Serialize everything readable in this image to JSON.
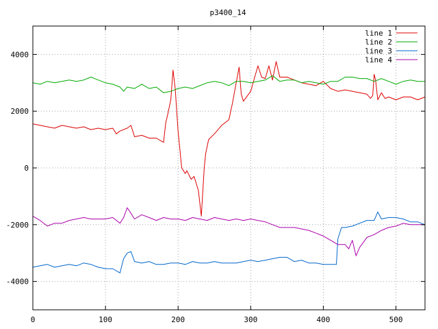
{
  "chart_data": {
    "type": "line",
    "title": "p3400_14",
    "xlabel": "",
    "ylabel": "",
    "xlim": [
      0,
      540
    ],
    "ylim": [
      -5000,
      5000
    ],
    "x_ticks": [
      0,
      100,
      200,
      300,
      400,
      500
    ],
    "y_ticks": [
      -4000,
      -2000,
      0,
      2000,
      4000
    ],
    "grid": true,
    "legend_position": "top-right",
    "series": [
      {
        "name": "line 1",
        "color": "#dd0000",
        "x": [
          0,
          10,
          20,
          30,
          40,
          50,
          60,
          70,
          80,
          90,
          100,
          110,
          115,
          120,
          130,
          135,
          140,
          150,
          160,
          170,
          180,
          183,
          185,
          190,
          193,
          196,
          200,
          205,
          210,
          212,
          218,
          222,
          228,
          232,
          236,
          238,
          242,
          250,
          260,
          270,
          275,
          280,
          284,
          287,
          290,
          300,
          310,
          315,
          320,
          325,
          330,
          335,
          340,
          350,
          360,
          370,
          380,
          390,
          400,
          410,
          420,
          430,
          440,
          450,
          460,
          465,
          468,
          470,
          472,
          475,
          480,
          485,
          490,
          500,
          510,
          520,
          530,
          540
        ],
        "y": [
          1550,
          1500,
          1450,
          1400,
          1500,
          1450,
          1400,
          1450,
          1350,
          1400,
          1350,
          1400,
          1200,
          1300,
          1400,
          1500,
          1100,
          1150,
          1050,
          1050,
          900,
          1600,
          1800,
          2400,
          3450,
          2800,
          1300,
          0,
          -200,
          -100,
          -400,
          -300,
          -800,
          -1700,
          0,
          500,
          1000,
          1200,
          1500,
          1700,
          2300,
          3000,
          3550,
          2600,
          2350,
          2700,
          3600,
          3200,
          3150,
          3600,
          3100,
          3750,
          3200,
          3200,
          3100,
          3000,
          2950,
          2900,
          3050,
          2800,
          2700,
          2750,
          2700,
          2650,
          2600,
          2450,
          2550,
          3300,
          3100,
          2400,
          2650,
          2450,
          2500,
          2400,
          2500,
          2500,
          2400,
          2500
        ]
      },
      {
        "name": "line 2",
        "color": "#00aa00",
        "x": [
          0,
          10,
          20,
          30,
          40,
          50,
          60,
          70,
          80,
          90,
          100,
          110,
          120,
          125,
          130,
          140,
          150,
          160,
          170,
          180,
          190,
          200,
          210,
          220,
          230,
          240,
          250,
          260,
          270,
          280,
          290,
          300,
          310,
          320,
          330,
          340,
          350,
          360,
          370,
          380,
          390,
          400,
          410,
          420,
          430,
          440,
          450,
          460,
          470,
          480,
          490,
          500,
          510,
          520,
          530,
          540
        ],
        "y": [
          3000,
          2950,
          3050,
          3000,
          3050,
          3100,
          3050,
          3100,
          3200,
          3100,
          3000,
          2950,
          2850,
          2700,
          2850,
          2800,
          2950,
          2800,
          2850,
          2650,
          2700,
          2800,
          2850,
          2800,
          2900,
          3000,
          3050,
          3000,
          2900,
          3050,
          3050,
          3000,
          3050,
          3100,
          3250,
          3050,
          3100,
          3100,
          3000,
          3050,
          3000,
          2950,
          3050,
          3050,
          3200,
          3200,
          3150,
          3150,
          3050,
          3150,
          3050,
          2950,
          3050,
          3100,
          3050,
          3050
        ]
      },
      {
        "name": "line 3",
        "color": "#0066cc",
        "x": [
          0,
          10,
          20,
          30,
          40,
          50,
          60,
          70,
          80,
          90,
          100,
          110,
          120,
          125,
          130,
          135,
          140,
          150,
          160,
          170,
          180,
          190,
          200,
          210,
          220,
          230,
          240,
          250,
          260,
          270,
          280,
          290,
          300,
          310,
          320,
          330,
          340,
          350,
          360,
          370,
          380,
          390,
          400,
          410,
          418,
          420,
          425,
          430,
          440,
          450,
          460,
          470,
          475,
          480,
          490,
          500,
          510,
          520,
          530,
          540
        ],
        "y": [
          -3500,
          -3450,
          -3400,
          -3500,
          -3450,
          -3400,
          -3450,
          -3350,
          -3400,
          -3500,
          -3550,
          -3550,
          -3700,
          -3200,
          -3000,
          -2950,
          -3300,
          -3350,
          -3300,
          -3400,
          -3400,
          -3350,
          -3350,
          -3400,
          -3300,
          -3350,
          -3350,
          -3300,
          -3350,
          -3350,
          -3350,
          -3300,
          -3250,
          -3300,
          -3250,
          -3200,
          -3150,
          -3150,
          -3300,
          -3250,
          -3350,
          -3350,
          -3400,
          -3400,
          -3400,
          -2500,
          -2100,
          -2100,
          -2050,
          -1950,
          -1850,
          -1850,
          -1550,
          -1800,
          -1750,
          -1750,
          -1800,
          -1900,
          -1900,
          -2000
        ]
      },
      {
        "name": "line 4",
        "color": "#aa00aa",
        "x": [
          0,
          10,
          20,
          30,
          40,
          50,
          60,
          70,
          80,
          90,
          100,
          110,
          120,
          125,
          130,
          135,
          140,
          150,
          160,
          170,
          180,
          190,
          200,
          210,
          220,
          230,
          240,
          250,
          260,
          270,
          280,
          290,
          300,
          310,
          320,
          330,
          340,
          350,
          360,
          370,
          380,
          390,
          400,
          410,
          420,
          430,
          435,
          440,
          445,
          450,
          460,
          470,
          480,
          490,
          500,
          510,
          520,
          530,
          540
        ],
        "y": [
          -1700,
          -1850,
          -2050,
          -1950,
          -1950,
          -1850,
          -1800,
          -1750,
          -1800,
          -1800,
          -1800,
          -1750,
          -1950,
          -1750,
          -1400,
          -1600,
          -1800,
          -1650,
          -1750,
          -1850,
          -1750,
          -1800,
          -1800,
          -1850,
          -1750,
          -1800,
          -1850,
          -1750,
          -1800,
          -1850,
          -1800,
          -1850,
          -1800,
          -1850,
          -1900,
          -2000,
          -2100,
          -2100,
          -2100,
          -2150,
          -2200,
          -2300,
          -2400,
          -2550,
          -2700,
          -2700,
          -2850,
          -2550,
          -3100,
          -2800,
          -2450,
          -2350,
          -2200,
          -2100,
          -2050,
          -1950,
          -2000,
          -2000,
          -2000
        ]
      }
    ]
  }
}
